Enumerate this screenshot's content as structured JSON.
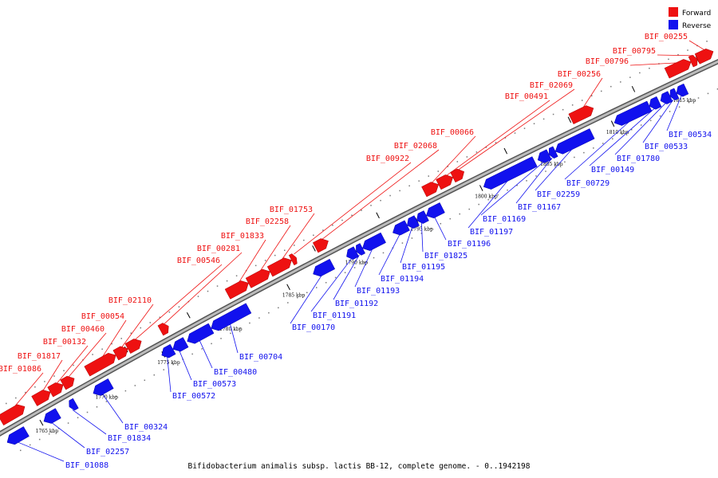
{
  "legend": [
    {
      "label": "Forward",
      "color": "#ee1111"
    },
    {
      "label": "Reverse",
      "color": "#1111ee"
    }
  ],
  "caption": "Bifidobacterium animalis subsp. lactis BB-12, complete genome. - 0..1942198",
  "colors": {
    "forward": "#ee1111",
    "reverse": "#1111ee",
    "backbone": "#888888",
    "tick": "#000000"
  },
  "scale_ticks": [
    "1765 kbp",
    "1770 kbp",
    "1775 kbp",
    "1780 kbp",
    "1785 kbp",
    "1790 kbp",
    "1795 kbp",
    "1800 kbp",
    "1805 kbp",
    "1810 kbp",
    "1815 kbp"
  ],
  "forward_genes": [
    "BIF_01086",
    "BIF_01817",
    "BIF_00132",
    "BIF_00460",
    "BIF_00054",
    "BIF_02110",
    "BIF_00546",
    "BIF_00281",
    "BIF_01833",
    "BIF_02258",
    "BIF_01753",
    "BIF_00922",
    "BIF_02068",
    "BIF_00066",
    "BIF_00491",
    "BIF_02069",
    "BIF_00256",
    "BIF_00796",
    "BIF_00795",
    "BIF_00255"
  ],
  "reverse_genes": [
    "BIF_01088",
    "BIF_02257",
    "BIF_01834",
    "BIF_00324",
    "BIF_00572",
    "BIF_00573",
    "BIF_00480",
    "BIF_00704",
    "BIF_00170",
    "BIF_01191",
    "BIF_01192",
    "BIF_01193",
    "BIF_01194",
    "BIF_01195",
    "BIF_01825",
    "BIF_01196",
    "BIF_01197",
    "BIF_01169",
    "BIF_01167",
    "BIF_02259",
    "BIF_00729",
    "BIF_00149",
    "BIF_01780",
    "BIF_00533",
    "BIF_00534"
  ]
}
